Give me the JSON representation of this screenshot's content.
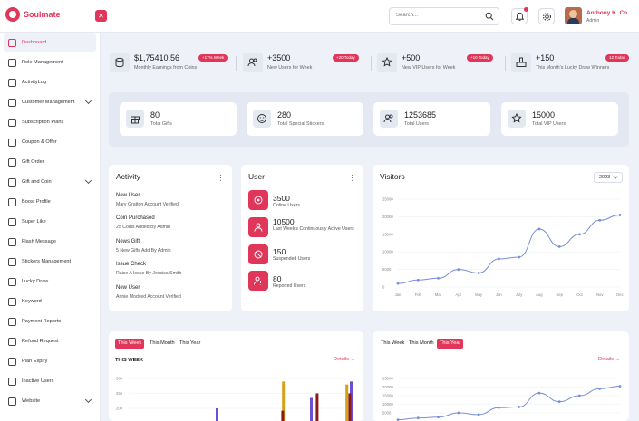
{
  "app": {
    "name": "Soulmate"
  },
  "header": {
    "collapse_icon": "close-icon",
    "search_placeholder": "Search...",
    "user_name": "Anthony K. Co...",
    "user_role": "Admin"
  },
  "sidebar": {
    "items": [
      {
        "label": "Dashboard",
        "active": true,
        "chevron": false
      },
      {
        "label": "Role Management",
        "chevron": false
      },
      {
        "label": "ActivityLog",
        "chevron": false
      },
      {
        "label": "Customer Management",
        "chevron": true
      },
      {
        "label": "Subscription Plans",
        "chevron": false
      },
      {
        "label": "Coupon & Offer",
        "chevron": false
      },
      {
        "label": "Gift Order",
        "chevron": false
      },
      {
        "label": "Gift and Coin",
        "chevron": true
      },
      {
        "label": "Boost Profile",
        "chevron": false
      },
      {
        "label": "Super Like",
        "chevron": false
      },
      {
        "label": "Flash Message",
        "chevron": false
      },
      {
        "label": "Stickers Management",
        "chevron": false
      },
      {
        "label": "Lucky Draw",
        "chevron": false
      },
      {
        "label": "Keyword",
        "chevron": false
      },
      {
        "label": "Payment Reports",
        "chevron": false
      },
      {
        "label": "Refund Request",
        "chevron": false
      },
      {
        "label": "Plan Expiry",
        "chevron": false
      },
      {
        "label": "Inactive Users",
        "chevron": false
      },
      {
        "label": "Website",
        "chevron": true
      }
    ]
  },
  "stats": [
    {
      "value": "$1,75410.56",
      "label": "Monthly Earnings from Coins",
      "badge": "+17% Week",
      "icon": "coins-icon"
    },
    {
      "value": "+3500",
      "label": "New Users for Week",
      "badge": "+20 Today",
      "icon": "users-icon"
    },
    {
      "value": "+500",
      "label": "New VIP Users for Week",
      "badge": "+10 Today",
      "icon": "vip-icon"
    },
    {
      "value": "+150",
      "label": "This Month's Lucky Draw Winners",
      "badge": "12 Today",
      "icon": "trophy-icon"
    }
  ],
  "totals": [
    {
      "value": "80",
      "label": "Total Gifts",
      "icon": "gift-icon"
    },
    {
      "value": "280",
      "label": "Total Special Stickers",
      "icon": "sticker-icon"
    },
    {
      "value": "1253685",
      "label": "Total Users",
      "icon": "users-icon"
    },
    {
      "value": "15000",
      "label": "Total VIP Users",
      "icon": "vip-icon"
    }
  ],
  "activity": {
    "title": "Activity",
    "items": [
      {
        "title": "New User",
        "sub": "Mary Gratton Account Verified"
      },
      {
        "title": "Coin Purchased",
        "sub": "25 Coins Added By  Admin"
      },
      {
        "title": "News Gift",
        "sub": "5 New Gifts Add By Admin"
      },
      {
        "title": "Issue Check",
        "sub": "Raise A Issue By Jessica Smith"
      },
      {
        "title": "New User",
        "sub": "Annie Modved Account Verified"
      }
    ]
  },
  "user_card": {
    "title": "User",
    "items": [
      {
        "value": "3500",
        "label": "Online Users"
      },
      {
        "value": "10500",
        "label": "Last Week's Continuously Active Users"
      },
      {
        "value": "150",
        "label": "Suspended Users"
      },
      {
        "value": "80",
        "label": "Reported Users"
      }
    ]
  },
  "visitors": {
    "title": "Visitors",
    "year": "2023"
  },
  "bottom_left": {
    "tabs": [
      "This Week",
      "This Month",
      "This Year"
    ],
    "active_tab": 0,
    "period": "THIS WEEK",
    "details": "Details"
  },
  "bottom_right": {
    "tabs": [
      "This Week",
      "This Month",
      "This Year"
    ],
    "active_tab": 2,
    "details": "Details"
  },
  "colors": {
    "accent": "#e0365a",
    "line": "#7a8fd6"
  },
  "chart_data": [
    {
      "type": "line",
      "title": "Visitors",
      "x": [
        "Jan",
        "Feb",
        "Mar",
        "Apr",
        "May",
        "Jun",
        "July",
        "Aug",
        "Sep",
        "Oct",
        "Nov",
        "Dec"
      ],
      "values": [
        1000,
        2000,
        2500,
        5000,
        4000,
        8000,
        8500,
        16500,
        11500,
        15000,
        19000,
        20500
      ],
      "ylim": [
        0,
        25000
      ],
      "yticks": [
        "25000",
        "20000",
        "15000",
        "10000",
        "5000",
        "0"
      ],
      "grid": true
    },
    {
      "type": "bar",
      "period": "THIS WEEK",
      "yticks": [
        "300",
        "250",
        "200"
      ],
      "ylim_visible": [
        175,
        300
      ],
      "series": [
        {
          "color": "#6b4fd6",
          "values": [
            null,
            null,
            null,
            200,
            null,
            null,
            235,
            null,
            null,
            290
          ]
        },
        {
          "color": "#d6a017",
          "values": [
            null,
            null,
            null,
            null,
            null,
            290,
            null,
            null,
            280,
            null
          ]
        },
        {
          "color": "#8a1a1a",
          "values": [
            null,
            null,
            null,
            null,
            192,
            null,
            250,
            null,
            250,
            null
          ]
        }
      ]
    },
    {
      "type": "line",
      "yticks": [
        "25000",
        "20000",
        "15000",
        "10000",
        "5000"
      ],
      "values": [
        1000,
        2000,
        2500,
        5000,
        4000,
        8000,
        8500,
        16500,
        11500,
        15000,
        19000,
        20500
      ],
      "ylim": [
        0,
        25000
      ],
      "grid": true
    }
  ]
}
